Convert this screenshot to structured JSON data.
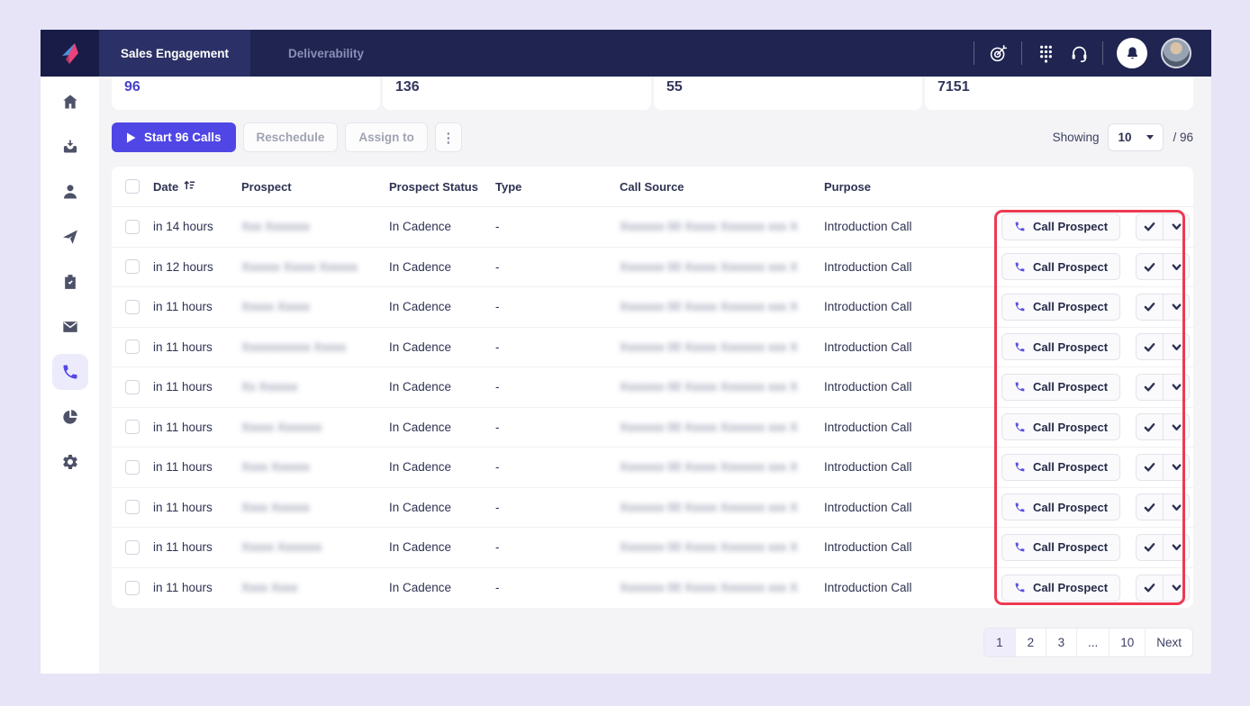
{
  "colors": {
    "accent_indigo": "#4f46e5",
    "navbar_navy": "#1f2451",
    "active_tab_navy": "#2b3166",
    "annotation_red": "#ee3a52",
    "outer_background": "#e6e4f6",
    "content_background": "#f4f4f7"
  },
  "navbar": {
    "tabs": [
      {
        "label": "Sales Engagement",
        "active": true
      },
      {
        "label": "Deliverability",
        "active": false
      }
    ],
    "right_icons": [
      "target-icon",
      "dialpad-icon",
      "headset-icon",
      "bell-icon",
      "user-avatar"
    ]
  },
  "sidebar": {
    "items": [
      {
        "icon": "home-icon",
        "active": false
      },
      {
        "icon": "inbox-icon",
        "active": false
      },
      {
        "icon": "prospects-icon",
        "active": false
      },
      {
        "icon": "cadence-send-icon",
        "active": false
      },
      {
        "icon": "tasks-clipboard-icon",
        "active": false
      },
      {
        "icon": "email-icon",
        "active": false
      },
      {
        "icon": "calls-phone-icon",
        "active": true
      },
      {
        "icon": "reports-pie-icon",
        "active": false
      },
      {
        "icon": "settings-gear-icon",
        "active": false
      }
    ]
  },
  "stats": {
    "cards": [
      {
        "value": "96",
        "accent": true
      },
      {
        "value": "136",
        "accent": false
      },
      {
        "value": "55",
        "accent": false
      },
      {
        "value": "7151",
        "accent": false
      }
    ]
  },
  "toolbar": {
    "start_calls": "Start 96 Calls",
    "reschedule": "Reschedule",
    "assign_to": "Assign to",
    "kebab": "⋮",
    "showing_label": "Showing",
    "page_size": "10",
    "total": "/ 96"
  },
  "table": {
    "headers": {
      "date": "Date",
      "prospect": "Prospect",
      "prospect_status": "Prospect Status",
      "type": "Type",
      "call_source": "Call Source",
      "purpose": "Purpose"
    },
    "actions": {
      "call_label": "Call Prospect"
    },
    "rows": [
      {
        "date": "in 14 hours",
        "prospect_redacted": "Xxx Xxxxxxx",
        "status": "In Cadence",
        "type": "-",
        "call_source_redacted": "Xxxxxxx 00 Xxxxx Xxxxxxx xxx X",
        "purpose": "Introduction Call"
      },
      {
        "date": "in 12 hours",
        "prospect_redacted": "Xxxxxx Xxxxx Xxxxxx",
        "status": "In Cadence",
        "type": "-",
        "call_source_redacted": "Xxxxxxx 00 Xxxxx Xxxxxxx xxx X",
        "purpose": "Introduction Call"
      },
      {
        "date": "in 11 hours",
        "prospect_redacted": "Xxxxx Xxxxx",
        "status": "In Cadence",
        "type": "-",
        "call_source_redacted": "Xxxxxxx 00 Xxxxx Xxxxxxx xxx X",
        "purpose": "Introduction Call"
      },
      {
        "date": "in 11 hours",
        "prospect_redacted": "Xxxxxxxxxxx Xxxxx",
        "status": "In Cadence",
        "type": "-",
        "call_source_redacted": "Xxxxxxx 00 Xxxxx Xxxxxxx xxx X",
        "purpose": "Introduction Call"
      },
      {
        "date": "in 11 hours",
        "prospect_redacted": "Xx Xxxxxx",
        "status": "In Cadence",
        "type": "-",
        "call_source_redacted": "Xxxxxxx 00 Xxxxx Xxxxxxx xxx X",
        "purpose": "Introduction Call"
      },
      {
        "date": "in 11 hours",
        "prospect_redacted": "Xxxxx Xxxxxxx",
        "status": "In Cadence",
        "type": "-",
        "call_source_redacted": "Xxxxxxx 00 Xxxxx Xxxxxxx xxx X",
        "purpose": "Introduction Call"
      },
      {
        "date": "in 11 hours",
        "prospect_redacted": "Xxxx Xxxxxx",
        "status": "In Cadence",
        "type": "-",
        "call_source_redacted": "Xxxxxxx 00 Xxxxx Xxxxxxx xxx X",
        "purpose": "Introduction Call"
      },
      {
        "date": "in 11 hours",
        "prospect_redacted": "Xxxx Xxxxxx",
        "status": "In Cadence",
        "type": "-",
        "call_source_redacted": "Xxxxxxx 00 Xxxxx Xxxxxxx xxx X",
        "purpose": "Introduction Call"
      },
      {
        "date": "in 11 hours",
        "prospect_redacted": "Xxxxx Xxxxxxx",
        "status": "In Cadence",
        "type": "-",
        "call_source_redacted": "Xxxxxxx 00 Xxxxx Xxxxxxx xxx X",
        "purpose": "Introduction Call"
      },
      {
        "date": "in 11 hours",
        "prospect_redacted": "Xxxx Xxxx",
        "status": "In Cadence",
        "type": "-",
        "call_source_redacted": "Xxxxxxx 00 Xxxxx Xxxxxxx xxx X",
        "purpose": "Introduction Call"
      }
    ]
  },
  "pagination": {
    "pages": [
      "1",
      "2",
      "3",
      "...",
      "10"
    ],
    "active_page": "1",
    "next": "Next"
  }
}
